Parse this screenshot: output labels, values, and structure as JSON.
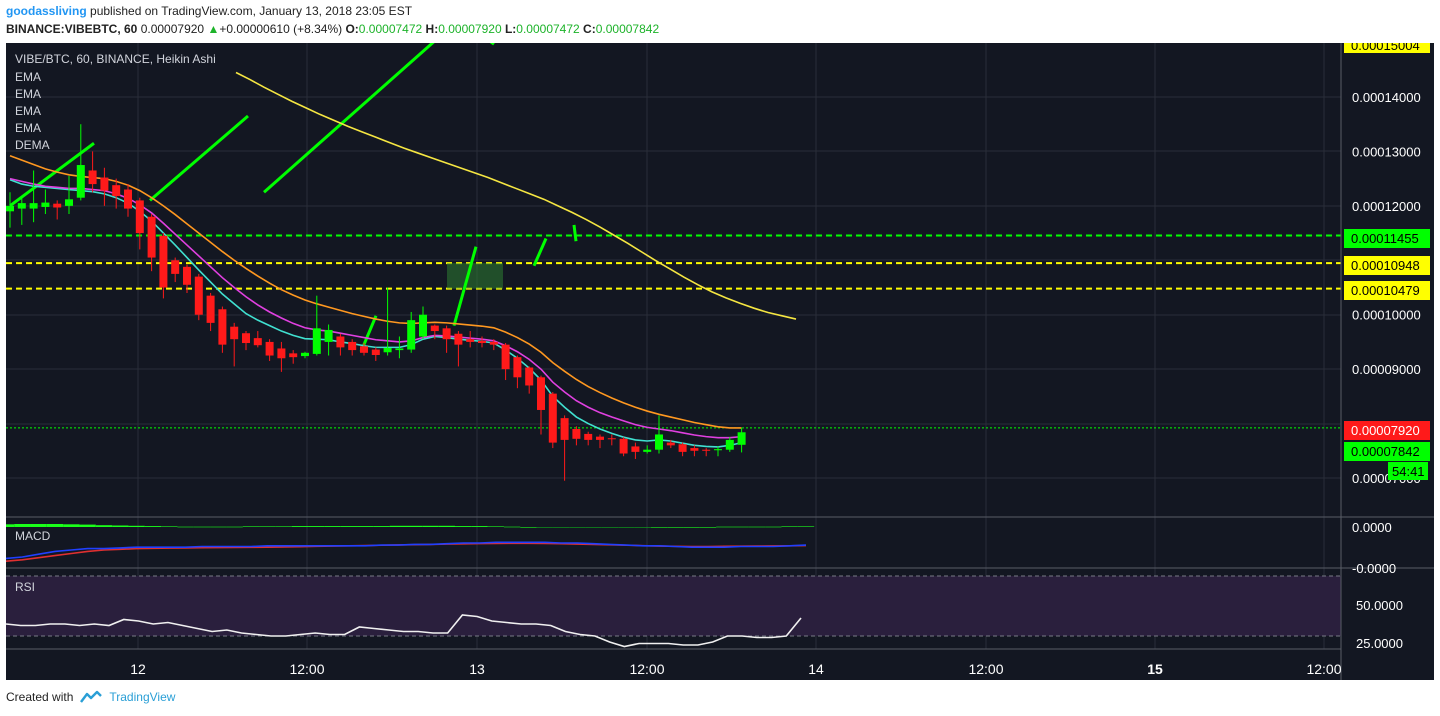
{
  "header": {
    "username": "goodassliving",
    "published_text": "published on TradingView.com, January 13, 2018 23:05 EST"
  },
  "ohlc_bar": {
    "symbol": "BINANCE:VIBEBTC, 60",
    "last": "0.00007920",
    "change": "+0.00000610 (+8.34%)",
    "o_label": "O:",
    "o": "0.00007472",
    "h_label": "H:",
    "h": "0.00007920",
    "l_label": "L:",
    "l": "0.00007472",
    "c_label": "C:",
    "c": "0.00007842"
  },
  "legend": {
    "title": "VIBE/BTC, 60, BINANCE, Heikin Ashi",
    "indicators": [
      "EMA",
      "EMA",
      "EMA",
      "EMA",
      "DEMA"
    ]
  },
  "price_axis": {
    "ticks": [
      "0.00014000",
      "0.00013000",
      "0.00012000",
      "0.00010000",
      "0.00009000",
      "0.00007000"
    ],
    "top_badge": "0.00015004"
  },
  "price_badges": [
    {
      "label": "0.00011455",
      "color": "#00ff00"
    },
    {
      "label": "0.00010948",
      "color": "#ffff00"
    },
    {
      "label": "0.00010479",
      "color": "#ffff00"
    },
    {
      "label": "0.00007920",
      "color": "#ff1a1a"
    },
    {
      "label": "0.00007842",
      "color": "#00ff00"
    }
  ],
  "countdown": "54:41",
  "time_axis": {
    "labels": [
      "12",
      "12:00",
      "13",
      "12:00",
      "14",
      "12:00",
      "15",
      "12:00"
    ]
  },
  "macd": {
    "label": "MACD",
    "ticks": [
      "0.0000",
      "-0.0000"
    ]
  },
  "rsi": {
    "label": "RSI",
    "ticks": [
      "50.0000",
      "25.0000"
    ]
  },
  "footer": {
    "created_with": "Created with",
    "brand": "TradingView"
  },
  "colors": {
    "background": "#131722",
    "bull": "#00ff00",
    "bear": "#ff1a1a",
    "ema_cyan": "#40e0d0",
    "ema_magenta": "#e040e0",
    "ema_orange": "#ff9820",
    "ema_yellow": "#f5e642",
    "drawing": "#00ff00",
    "rsi_band": "#2a1f3d"
  },
  "chart_data": {
    "type": "candlestick",
    "title": "VIBE/BTC, 60, BINANCE, Heikin Ashi",
    "y_unit": "BTC",
    "ylim": [
      6.78e-05,
      0.0001505
    ],
    "horizontal_levels": [
      {
        "value": 0.00011455,
        "color": "#00ff00",
        "style": "dashed"
      },
      {
        "value": 0.00010948,
        "color": "#ffff00",
        "style": "dashed"
      },
      {
        "value": 0.00010479,
        "color": "#ffff00",
        "style": "dashed"
      },
      {
        "value": 7.92e-05,
        "color": "#00ff00",
        "style": "dotted"
      }
    ],
    "candles": [
      {
        "o": 0.000119,
        "c": 0.00012,
        "h": 0.0001225,
        "l": 0.000116
      },
      {
        "o": 0.0001195,
        "c": 0.0001205,
        "h": 0.0001215,
        "l": 0.0001165
      },
      {
        "o": 0.0001195,
        "c": 0.0001205,
        "h": 0.0001265,
        "l": 0.000117
      },
      {
        "o": 0.0001198,
        "c": 0.0001206,
        "h": 0.000123,
        "l": 0.0001185
      },
      {
        "o": 0.0001204,
        "c": 0.0001197,
        "h": 0.000121,
        "l": 0.0001175
      },
      {
        "o": 0.00012,
        "c": 0.0001212,
        "h": 0.0001255,
        "l": 0.0001185
      },
      {
        "o": 0.0001215,
        "c": 0.0001275,
        "h": 0.000135,
        "l": 0.000121
      },
      {
        "o": 0.0001265,
        "c": 0.000124,
        "h": 0.00013,
        "l": 0.0001225
      },
      {
        "o": 0.0001252,
        "c": 0.0001228,
        "h": 0.000127,
        "l": 0.00012
      },
      {
        "o": 0.0001238,
        "c": 0.0001218,
        "h": 0.000125,
        "l": 0.0001195
      },
      {
        "o": 0.000123,
        "c": 0.0001195,
        "h": 0.000124,
        "l": 0.000118
      },
      {
        "o": 0.000121,
        "c": 0.000115,
        "h": 0.0001215,
        "l": 0.000112
      },
      {
        "o": 0.000118,
        "c": 0.0001105,
        "h": 0.0001185,
        "l": 0.000108
      },
      {
        "o": 0.0001145,
        "c": 0.000105,
        "h": 0.000115,
        "l": 0.000103
      },
      {
        "o": 0.00011,
        "c": 0.0001075,
        "h": 0.0001105,
        "l": 0.000106
      },
      {
        "o": 0.0001088,
        "c": 0.0001055,
        "h": 0.0001092,
        "l": 0.000104
      },
      {
        "o": 0.000107,
        "c": 0.0001,
        "h": 0.0001075,
        "l": 9.9e-05
      },
      {
        "o": 0.0001035,
        "c": 9.85e-05,
        "h": 0.000104,
        "l": 9.7e-05
      },
      {
        "o": 0.000101,
        "c": 9.45e-05,
        "h": 0.0001015,
        "l": 9.3e-05
      },
      {
        "o": 9.78e-05,
        "c": 9.55e-05,
        "h": 9.85e-05,
        "l": 9.05e-05
      },
      {
        "o": 9.66e-05,
        "c": 9.48e-05,
        "h": 9.7e-05,
        "l": 9.35e-05
      },
      {
        "o": 9.57e-05,
        "c": 9.44e-05,
        "h": 9.7e-05,
        "l": 9.4e-05
      },
      {
        "o": 9.5e-05,
        "c": 9.25e-05,
        "h": 9.55e-05,
        "l": 9.15e-05
      },
      {
        "o": 9.38e-05,
        "c": 9.2e-05,
        "h": 9.5e-05,
        "l": 8.95e-05
      },
      {
        "o": 9.29e-05,
        "c": 9.22e-05,
        "h": 9.35e-05,
        "l": 9.1e-05
      },
      {
        "o": 9.24e-05,
        "c": 9.3e-05,
        "h": 9.32e-05,
        "l": 9.2e-05
      },
      {
        "o": 9.28e-05,
        "c": 9.75e-05,
        "h": 0.0001035,
        "l": 9.25e-05
      },
      {
        "o": 9.5e-05,
        "c": 9.72e-05,
        "h": 9.82e-05,
        "l": 9.25e-05
      },
      {
        "o": 9.6e-05,
        "c": 9.4e-05,
        "h": 9.65e-05,
        "l": 9.25e-05
      },
      {
        "o": 9.5e-05,
        "c": 9.35e-05,
        "h": 9.55e-05,
        "l": 9.25e-05
      },
      {
        "o": 9.42e-05,
        "c": 9.3e-05,
        "h": 9.48e-05,
        "l": 9.25e-05
      },
      {
        "o": 9.36e-05,
        "c": 9.26e-05,
        "h": 9.4e-05,
        "l": 9.15e-05
      },
      {
        "o": 9.31e-05,
        "c": 9.39e-05,
        "h": 0.000105,
        "l": 9.25e-05
      },
      {
        "o": 9.35e-05,
        "c": 9.38e-05,
        "h": 9.6e-05,
        "l": 9.2e-05
      },
      {
        "o": 9.36e-05,
        "c": 9.9e-05,
        "h": 0.0001005,
        "l": 9.3e-05
      },
      {
        "o": 9.6e-05,
        "c": 0.0001,
        "h": 0.0001015,
        "l": 9.55e-05
      },
      {
        "o": 9.8e-05,
        "c": 9.7e-05,
        "h": 9.82e-05,
        "l": 9.55e-05
      },
      {
        "o": 9.75e-05,
        "c": 9.55e-05,
        "h": 9.8e-05,
        "l": 9.3e-05
      },
      {
        "o": 9.65e-05,
        "c": 9.45e-05,
        "h": 9.7e-05,
        "l": 9.05e-05
      },
      {
        "o": 9.55e-05,
        "c": 9.5e-05,
        "h": 9.7e-05,
        "l": 9.4e-05
      },
      {
        "o": 9.52e-05,
        "c": 9.48e-05,
        "h": 9.6e-05,
        "l": 9.4e-05
      },
      {
        "o": 9.5e-05,
        "c": 9.45e-05,
        "h": 9.55e-05,
        "l": 9.35e-05
      },
      {
        "o": 9.45e-05,
        "c": 9e-05,
        "h": 9.48e-05,
        "l": 8.8e-05
      },
      {
        "o": 9.22e-05,
        "c": 8.85e-05,
        "h": 9.25e-05,
        "l": 8.65e-05
      },
      {
        "o": 9.03e-05,
        "c": 8.7e-05,
        "h": 9.05e-05,
        "l": 8.55e-05
      },
      {
        "o": 8.85e-05,
        "c": 8.25e-05,
        "h": 8.88e-05,
        "l": 7.8e-05
      },
      {
        "o": 8.55e-05,
        "c": 7.65e-05,
        "h": 8.58e-05,
        "l": 7.55e-05
      },
      {
        "o": 8.1e-05,
        "c": 7.7e-05,
        "h": 8.15e-05,
        "l": 6.95e-05
      },
      {
        "o": 7.9e-05,
        "c": 7.72e-05,
        "h": 7.95e-05,
        "l": 7.6e-05
      },
      {
        "o": 7.81e-05,
        "c": 7.7e-05,
        "h": 7.85e-05,
        "l": 7.6e-05
      },
      {
        "o": 7.76e-05,
        "c": 7.7e-05,
        "h": 7.8e-05,
        "l": 7.55e-05
      },
      {
        "o": 7.73e-05,
        "c": 7.72e-05,
        "h": 7.8e-05,
        "l": 7.6e-05
      },
      {
        "o": 7.72e-05,
        "c": 7.45e-05,
        "h": 7.75e-05,
        "l": 7.4e-05
      },
      {
        "o": 7.58e-05,
        "c": 7.48e-05,
        "h": 7.65e-05,
        "l": 7.35e-05
      },
      {
        "o": 7.48e-05,
        "c": 7.52e-05,
        "h": 7.6e-05,
        "l": 7.45e-05
      },
      {
        "o": 7.52e-05,
        "c": 7.8e-05,
        "h": 8.15e-05,
        "l": 7.45e-05
      },
      {
        "o": 7.65e-05,
        "c": 7.6e-05,
        "h": 7.7e-05,
        "l": 7.55e-05
      },
      {
        "o": 7.62e-05,
        "c": 7.48e-05,
        "h": 7.65e-05,
        "l": 7.4e-05
      },
      {
        "o": 7.55e-05,
        "c": 7.5e-05,
        "h": 7.6e-05,
        "l": 7.4e-05
      },
      {
        "o": 7.52e-05,
        "c": 7.5e-05,
        "h": 7.55e-05,
        "l": 7.4e-05
      },
      {
        "o": 7.51e-05,
        "c": 7.53e-05,
        "h": 7.58e-05,
        "l": 7.4e-05
      },
      {
        "o": 7.52e-05,
        "c": 7.7e-05,
        "h": 7.75e-05,
        "l": 7.48e-05
      },
      {
        "o": 7.61e-05,
        "c": 7.84e-05,
        "h": 7.92e-05,
        "l": 7.47e-05
      }
    ],
    "ema_series": [
      {
        "color": "#40e0d0",
        "values": [
          0.0001248,
          0.000124,
          0.0001236,
          0.0001234,
          0.0001232,
          0.000123,
          0.0001228,
          0.0001226,
          0.0001222,
          0.0001215,
          0.0001205,
          0.000119,
          0.0001172,
          0.000115,
          0.0001128,
          0.0001105,
          0.0001082,
          0.000106,
          0.0001038,
          0.000102,
          0.0001002,
          9.9e-05,
          9.8e-05,
          9.7e-05,
          9.62e-05,
          9.56e-05,
          9.55e-05,
          9.54e-05,
          9.5e-05,
          9.47e-05,
          9.43e-05,
          9.4e-05,
          9.4e-05,
          9.4e-05,
          9.45e-05,
          9.55e-05,
          9.6e-05,
          9.58e-05,
          9.55e-05,
          9.53e-05,
          9.51e-05,
          9.48e-05,
          9.35e-05,
          9.2e-05,
          9.02e-05,
          8.8e-05,
          8.5e-05,
          8.3e-05,
          8.12e-05,
          8e-05,
          7.9e-05,
          7.82e-05,
          7.75e-05,
          7.7e-05,
          7.68e-05,
          7.7e-05,
          7.68e-05,
          7.64e-05,
          7.6e-05,
          7.58e-05,
          7.57e-05,
          7.6e-05,
          7.65e-05
        ]
      },
      {
        "color": "#e040e0",
        "values": [
          0.000125,
          0.0001245,
          0.000124,
          0.0001236,
          0.0001234,
          0.0001232,
          0.0001232,
          0.000123,
          0.0001228,
          0.0001222,
          0.0001214,
          0.0001202,
          0.0001187,
          0.0001168,
          0.0001148,
          0.0001128,
          0.0001108,
          0.0001088,
          0.0001068,
          0.000105,
          0.0001033,
          0.0001018,
          0.0001005,
          9.94e-05,
          9.84e-05,
          9.76e-05,
          9.72e-05,
          9.7e-05,
          9.66e-05,
          9.62e-05,
          9.58e-05,
          9.54e-05,
          9.52e-05,
          9.5e-05,
          9.52e-05,
          9.58e-05,
          9.62e-05,
          9.61e-05,
          9.59e-05,
          9.57e-05,
          9.55e-05,
          9.52e-05,
          9.43e-05,
          9.32e-05,
          9.18e-05,
          9e-05,
          8.76e-05,
          8.58e-05,
          8.42e-05,
          8.3e-05,
          8.2e-05,
          8.12e-05,
          8.05e-05,
          7.98e-05,
          7.93e-05,
          7.9e-05,
          7.87e-05,
          7.83e-05,
          7.79e-05,
          7.76e-05,
          7.74e-05,
          7.74e-05,
          7.76e-05
        ]
      },
      {
        "color": "#ff9820",
        "values": [
          0.0001292,
          0.0001284,
          0.0001276,
          0.0001268,
          0.0001262,
          0.0001257,
          0.0001254,
          0.0001252,
          0.000125,
          0.0001245,
          0.0001238,
          0.0001228,
          0.0001215,
          0.00012,
          0.0001184,
          0.0001167,
          0.000115,
          0.0001133,
          0.0001116,
          0.00011,
          0.0001085,
          0.0001071,
          0.0001058,
          0.0001046,
          0.0001036,
          0.0001027,
          0.000102,
          0.0001014,
          0.0001008,
          0.0001002,
          9.97e-05,
          9.92e-05,
          9.88e-05,
          9.85e-05,
          9.84e-05,
          9.85e-05,
          9.86e-05,
          9.85e-05,
          9.83e-05,
          9.81e-05,
          9.79e-05,
          9.76e-05,
          9.68e-05,
          9.58e-05,
          9.46e-05,
          9.31e-05,
          9.12e-05,
          8.96e-05,
          8.81e-05,
          8.68e-05,
          8.57e-05,
          8.47e-05,
          8.38e-05,
          8.3e-05,
          8.23e-05,
          8.17e-05,
          8.12e-05,
          8.07e-05,
          8.02e-05,
          7.98e-05,
          7.94e-05,
          7.92e-05,
          7.92e-05
        ]
      },
      {
        "color": "#f5e642",
        "start_index": 22,
        "values": [
          0.0001445,
          0.0001432,
          0.0001418,
          0.0001405,
          0.0001392,
          0.000138,
          0.0001368,
          0.0001357,
          0.0001346,
          0.0001336,
          0.0001326,
          0.0001316,
          0.0001306,
          0.0001297,
          0.0001288,
          0.0001279,
          0.000127,
          0.0001261,
          0.0001252,
          0.0001242,
          0.0001232,
          0.0001222,
          0.0001212,
          0.00012,
          0.0001188,
          0.0001175,
          0.0001161,
          0.0001146,
          0.0001131,
          0.0001115,
          0.0001099,
          0.0001084,
          0.0001069,
          0.0001055,
          0.0001042,
          0.0001031,
          0.0001021,
          0.0001012,
          0.0001004,
          9.98e-05,
          9.92e-05
        ]
      }
    ],
    "macd": {
      "line": [
        -0.6,
        -0.5,
        -0.3,
        -0.1,
        0.0,
        0.1,
        0.1,
        0.15,
        0.2,
        0.2,
        0.2,
        0.2,
        0.25,
        0.25,
        0.25,
        0.25,
        0.3,
        0.3,
        0.3,
        0.3,
        0.3,
        0.3,
        0.3,
        0.35,
        0.35,
        0.4,
        0.4,
        0.45,
        0.5,
        0.5,
        0.55,
        0.55,
        0.55,
        0.55,
        0.5,
        0.5,
        0.45,
        0.4,
        0.35,
        0.3,
        0.3,
        0.25,
        0.2,
        0.2,
        0.2,
        0.25,
        0.25,
        0.25,
        0.3,
        0.35
      ],
      "signal": [
        -0.8,
        -0.7,
        -0.55,
        -0.4,
        -0.25,
        -0.1,
        0.0,
        0.05,
        0.1,
        0.12,
        0.14,
        0.15,
        0.16,
        0.17,
        0.18,
        0.19,
        0.2,
        0.22,
        0.24,
        0.26,
        0.28,
        0.3,
        0.32,
        0.34,
        0.36,
        0.38,
        0.4,
        0.42,
        0.44,
        0.46,
        0.47,
        0.48,
        0.48,
        0.47,
        0.45,
        0.42,
        0.4,
        0.37,
        0.34,
        0.31,
        0.28,
        0.26,
        0.25,
        0.25,
        0.26,
        0.27,
        0.28,
        0.29,
        0.3,
        0.32
      ],
      "histogram": [
        0.9,
        1.0,
        1.0,
        1.0,
        0.9,
        0.8,
        0.6,
        0.5,
        0.4,
        0.3,
        0.2,
        0.1,
        0.1,
        0.1,
        0.1,
        0.2,
        0.2,
        0.2,
        0.3,
        0.3,
        0.3,
        0.3,
        0.3,
        0.3,
        0.4,
        0.4,
        0.4,
        0.4,
        0.3,
        0.3,
        0.2,
        0.1,
        0.0,
        -0.1,
        -0.2,
        -0.2,
        -0.2,
        -0.2,
        -0.1,
        -0.1,
        0.0,
        0.0,
        0.0,
        0.0,
        0.1,
        0.1,
        0.1,
        0.1,
        0.2,
        0.2
      ]
    },
    "rsi": {
      "range": [
        10,
        80
      ],
      "bands": [
        30,
        70
      ],
      "values": [
        38,
        37,
        37,
        38,
        38,
        37,
        38,
        37,
        41,
        40,
        38,
        39,
        37,
        35,
        33,
        34,
        32,
        31,
        30,
        30,
        31,
        32,
        31,
        31,
        36,
        35,
        34,
        33,
        33,
        32,
        32,
        44,
        43,
        40,
        39,
        38,
        38,
        37,
        33,
        31,
        30,
        26,
        23,
        25,
        25,
        25,
        24,
        24,
        26,
        30,
        30,
        29,
        29,
        30,
        42
      ]
    },
    "time_axis_labels": [
      "12",
      "12:00",
      "13",
      "12:00",
      "14",
      "12:00",
      "15",
      "12:00"
    ]
  }
}
